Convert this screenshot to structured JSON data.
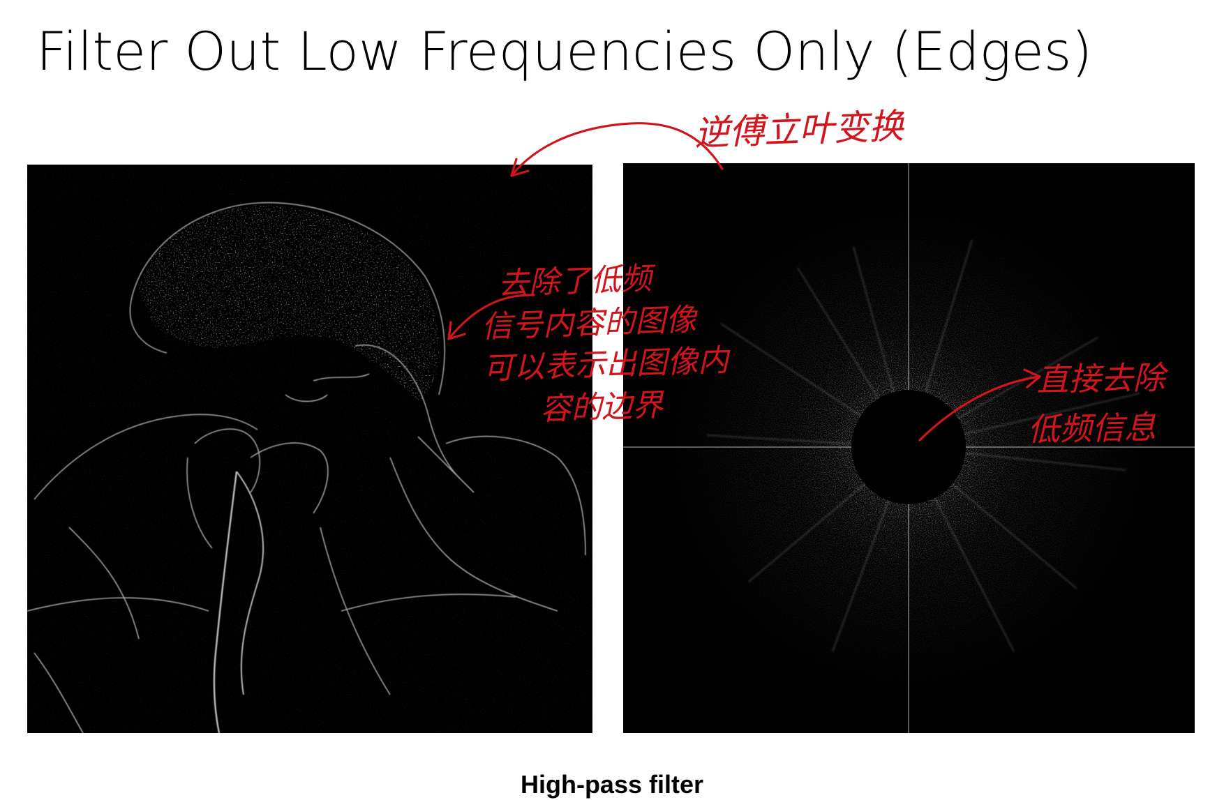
{
  "slide": {
    "title": "Filter Out Low Frequencies Only (Edges)",
    "caption": "High-pass filter"
  },
  "images": {
    "left": "high-pass-filtered-image",
    "right": "fourier-spectrum-with-center-removed"
  },
  "annotations": {
    "inverse_transform": "逆傅立叶变换",
    "edges_note": [
      "去除了低频",
      "信号内容的图像",
      "可以表示出图像内",
      "容的边界"
    ],
    "remove_note": [
      "直接去除",
      "低频信息"
    ]
  },
  "colors": {
    "annotation": "#d0151d",
    "panel_background": "#000000",
    "title_text": "#000000"
  }
}
